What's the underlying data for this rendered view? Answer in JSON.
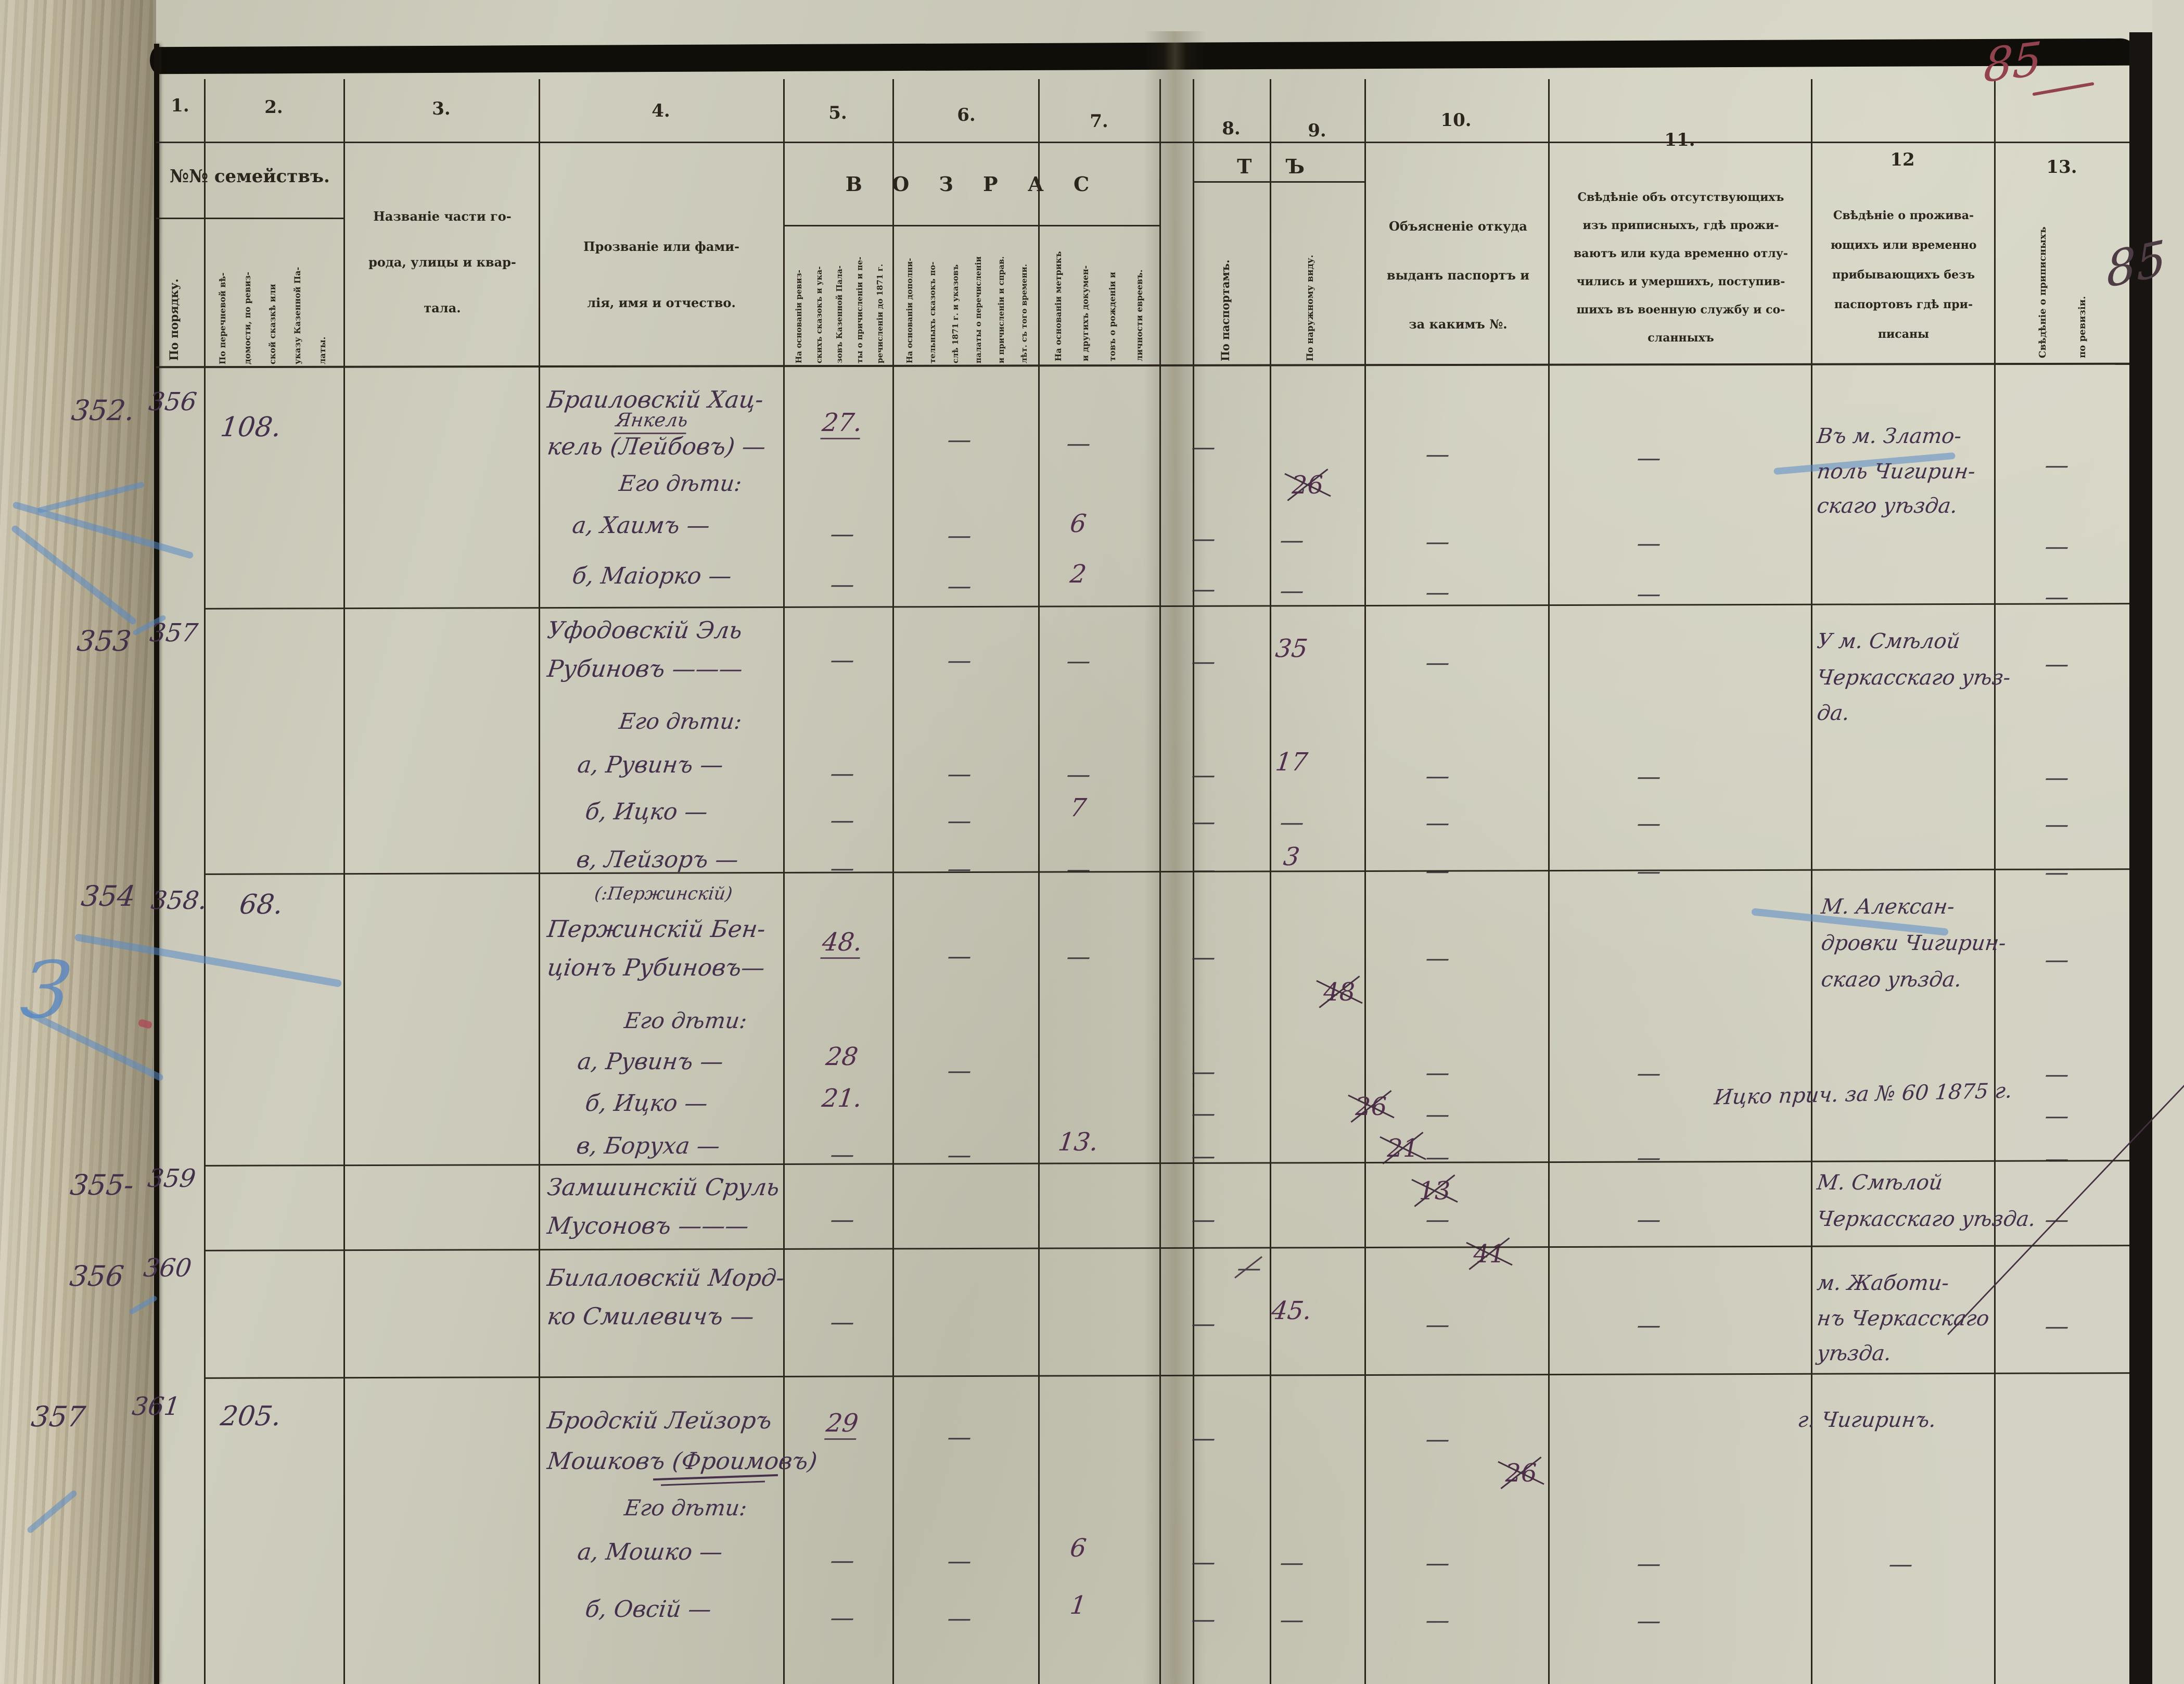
{
  "page": {
    "folio_red": "85",
    "folio_crossed": "85"
  },
  "header": {
    "col_numbers": [
      "1.",
      "2.",
      "3.",
      "4.",
      "5.",
      "6.",
      "7.",
      "8.",
      "9.",
      "10.",
      "11.",
      "12",
      "13."
    ],
    "families_band": "№№ семействъ.",
    "age_band_left": "В О З Р А С",
    "age_band_right": "Т Ъ",
    "columns": {
      "c1": "По порядку.",
      "c2": [
        "По перечневой вѣ-",
        "домости, по ревиз-",
        "ской сказкѣ или",
        "указу Казенной Па-",
        "латы."
      ],
      "c3": [
        "Названіе части го-",
        "рода, улицы и квар-",
        "тала."
      ],
      "c4": [
        "Прозваніе или фами-",
        "лія, имя и отчество."
      ],
      "c5": [
        "На основаніи ревиз-",
        "скихъ сказокъ и ука-",
        "зовъ Казенной Пала-",
        "ты о причисленіи и пе-",
        "речисленіи до 1871 г."
      ],
      "c6": [
        "На основаніи дополни-",
        "тельныхъ сказокъ по-",
        "слѣ 1871 г. и указовъ",
        "палаты о перечисленіи",
        "и причисленіи и справ.",
        "лѣт. съ того времени."
      ],
      "c7": [
        "На основаніи метрикъ",
        "и другихъ докумен-",
        "товъ о рожденіи и",
        "личности евреевъ."
      ],
      "c8": "По паспортамъ.",
      "c9": "По наружному виду.",
      "c10": [
        "Объясненіе откуда",
        "выданъ паспортъ и",
        "за какимъ №."
      ],
      "c11": [
        "Свѣдѣніе объ отсутствующихъ",
        "изъ приписныхъ, гдѣ прожи-",
        "ваютъ или куда временно отлу-",
        "чились и умершихъ, поступив-",
        "шихъ въ военную службу и со-",
        "сланныхъ"
      ],
      "c12": [
        "Свѣдѣніе о прожива-",
        "ющихъ или временно",
        "прибывающихъ безъ",
        "паспортовъ гдѣ при-",
        "писаны"
      ],
      "c13": [
        "Свѣдѣніе о приписныхъ",
        "по ревизіи."
      ]
    }
  },
  "families": [
    {
      "no_order": "352.",
      "no_list": "356",
      "no_skazka": "108.",
      "name_lines": [
        "Браиловскій Хац-",
        "кель (Лейбовъ) —"
      ],
      "name_insert": "Янкель",
      "children_label": "Его дѣти:",
      "place_lines": [
        "Въ м. Злато-",
        "поль Чигирин-",
        "скаго уѣзда."
      ],
      "rows": [
        {
          "person": "head",
          "cells": {
            "c5": "27.",
            "c6": "—",
            "c7": "—",
            "c8": "—",
            "c9": "26",
            "c9_struck": true,
            "c10": "—",
            "c11": "—",
            "c13": "—"
          }
        },
        {
          "person": "а, Хаимъ —",
          "cells": {
            "c5": "—",
            "c6": "—",
            "c7": "6",
            "c8": "—",
            "c9": "—",
            "c10": "—",
            "c11": "—",
            "c13": "—"
          }
        },
        {
          "person": "б, Маіорко —",
          "cells": {
            "c5": "—",
            "c6": "—",
            "c7": "2",
            "c8": "—",
            "c9": "—",
            "c10": "—",
            "c11": "—",
            "c13": "—"
          }
        }
      ]
    },
    {
      "no_order": "353",
      "no_list": "357",
      "name_lines": [
        "Уфодовскій Эль",
        "Рубиновъ ———"
      ],
      "children_label": "Его дѣти:",
      "place_lines": [
        "У м. Смѣлой",
        "Черкасскаго уѣз-",
        "да."
      ],
      "rows": [
        {
          "person": "head",
          "cells": {
            "c5": "—",
            "c6": "—",
            "c7": "—",
            "c8": "—",
            "c9": "35",
            "c10": "—",
            "c13": "—"
          }
        },
        {
          "person": "а, Рувинъ —",
          "cells": {
            "c5": "—",
            "c6": "—",
            "c7": "—",
            "c8": "—",
            "c9": "17",
            "c10": "—",
            "c11": "—",
            "c13": "—"
          }
        },
        {
          "person": "б, Ицко —",
          "cells": {
            "c5": "—",
            "c6": "—",
            "c7": "7",
            "c8": "—",
            "c9": "—",
            "c10": "—",
            "c11": "—",
            "c13": "—"
          }
        },
        {
          "person": "в, Лейзоръ —",
          "cells": {
            "c5": "—",
            "c6": "—",
            "c7": "—",
            "c8": "—",
            "c9": "3",
            "c10": "—",
            "c11": "—",
            "c13": "—"
          }
        }
      ]
    },
    {
      "no_order": "354",
      "no_list": "358.",
      "no_skazka": "68.",
      "note_above": "(:Пержинскій)",
      "name_lines": [
        "Пержинскій Бен-",
        "ціонъ Рубиновъ—"
      ],
      "children_label": "Его дѣти:",
      "place_lines": [
        "М. Алексан-",
        "дровки Чигирин-",
        "скаго уѣзда."
      ],
      "note_c11": "Ицко прич. за № 60 1875 г.",
      "rows": [
        {
          "person": "head",
          "cells": {
            "c5": "48.",
            "c6": "—",
            "c7": "—",
            "c8": "—",
            "c9": "48",
            "c9_struck": true,
            "c10": "—",
            "c13": "—"
          }
        },
        {
          "person": "а, Рувинъ —",
          "cells": {
            "c5": "28",
            "c6": "—",
            "c8": "—",
            "c9": "26",
            "c9_struck": true,
            "c10": "—",
            "c11": "—",
            "c13": "—"
          }
        },
        {
          "person": "б, Ицко —",
          "cells": {
            "c5": "21.",
            "c8": "—",
            "c9": "21",
            "c9_struck": true,
            "c10": "—",
            "c13": "—"
          }
        },
        {
          "person": "в, Боруха —",
          "cells": {
            "c5": "—",
            "c6": "—",
            "c7": "13.",
            "c8": "—",
            "c9": "13",
            "c9_struck": true,
            "c10": "—",
            "c11": "—",
            "c13": "—"
          }
        }
      ]
    },
    {
      "no_order": "355-",
      "no_list": "359",
      "name_lines": [
        "Замшинскій Сруль",
        "Мусоновъ ———"
      ],
      "place_lines": [
        "М. Смѣлой",
        "Черкасскаго уѣзда."
      ],
      "rows": [
        {
          "person": "head",
          "cells": {
            "c5": "—",
            "c7": "—",
            "c7_struck": true,
            "c8": "—",
            "c9": "41",
            "c9_struck": true,
            "c10": "—",
            "c11": "—",
            "c13": "—"
          }
        }
      ]
    },
    {
      "no_order": "356",
      "no_list": "360",
      "name_lines": [
        "Билаловскій Морд-",
        "ко Смилевичъ —"
      ],
      "place_lines": [
        "м. Жаботи-",
        "нъ Черкасскаго",
        "уѣзда."
      ],
      "rows": [
        {
          "person": "head",
          "cells": {
            "c5": "—",
            "c8": "—",
            "c9": "45.",
            "c10": "—",
            "c11": "—",
            "c13": "—"
          }
        }
      ]
    },
    {
      "no_order": "357",
      "no_list": "361",
      "no_skazka": "205.",
      "name_lines": [
        "Бродскій Лейзоръ",
        "Мошковъ (Фроимовъ)"
      ],
      "children_label": "Его дѣти:",
      "place_lines": [
        "г. Чигиринъ."
      ],
      "rows": [
        {
          "person": "head",
          "cells": {
            "c5": "29",
            "c6": "—",
            "c8": "—",
            "c9": "26",
            "c9_struck": true,
            "c10": "—"
          }
        },
        {
          "person": "а, Мошко —",
          "cells": {
            "c5": "—",
            "c6": "—",
            "c7": "6",
            "c8": "—",
            "c9": "—",
            "c10": "—",
            "c11": "—",
            "c12": "—"
          }
        },
        {
          "person": "б, Овсій —",
          "cells": {
            "c5": "—",
            "c6": "—",
            "c7": "1",
            "c8": "—",
            "c9": "—",
            "c10": "—",
            "c11": "—"
          }
        }
      ]
    }
  ]
}
